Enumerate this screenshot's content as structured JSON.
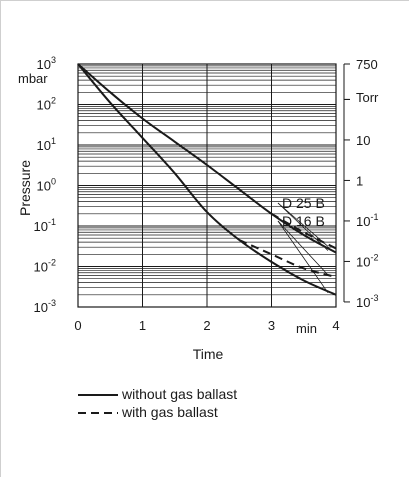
{
  "chart_data": {
    "type": "line",
    "xlabel": "Time",
    "x_unit": "min",
    "ylabel": "Pressure",
    "y_unit_left": "mbar",
    "y_unit_right": "Torr",
    "xlim": [
      0,
      4
    ],
    "ylim_mbar": [
      0.001,
      1000
    ],
    "yscale": "log",
    "grid": true,
    "x_ticks": [
      {
        "value": 0,
        "label": "0"
      },
      {
        "value": 1,
        "label": "1"
      },
      {
        "value": 2,
        "label": "2"
      },
      {
        "value": 3,
        "label": "3"
      },
      {
        "value": 4,
        "label": "4"
      }
    ],
    "y_ticks_left": [
      {
        "value": 1000,
        "base": "10",
        "exp": "3"
      },
      {
        "value": 100,
        "base": "10",
        "exp": "2"
      },
      {
        "value": 10,
        "base": "10",
        "exp": "1"
      },
      {
        "value": 1,
        "base": "10",
        "exp": "0"
      },
      {
        "value": 0.1,
        "base": "10",
        "exp": "-1"
      },
      {
        "value": 0.01,
        "base": "10",
        "exp": "-2"
      },
      {
        "value": 0.001,
        "base": "10",
        "exp": "-3"
      }
    ],
    "y_ticks_right": [
      {
        "torr": 750,
        "base": "750",
        "exp": ""
      },
      {
        "torr": 10,
        "base": "10",
        "exp": ""
      },
      {
        "torr": 1,
        "base": "1",
        "exp": ""
      },
      {
        "torr": 0.1,
        "base": "10",
        "exp": "-1"
      },
      {
        "torr": 0.01,
        "base": "10",
        "exp": "-2"
      },
      {
        "torr": 0.001,
        "base": "10",
        "exp": "-3"
      }
    ],
    "series": [
      {
        "name": "D 25 B",
        "style": "solid",
        "x": [
          0,
          0.5,
          1,
          1.5,
          2,
          2.5,
          3,
          3.5,
          4
        ],
        "y": [
          1000,
          200,
          45,
          12,
          3.2,
          0.8,
          0.2,
          0.06,
          0.022
        ]
      },
      {
        "name": "D 25 B",
        "style": "dashed",
        "x": [
          3,
          3.5,
          4
        ],
        "y": [
          0.2,
          0.07,
          0.028
        ]
      },
      {
        "name": "D 16 B",
        "style": "solid",
        "x": [
          0,
          0.5,
          1,
          1.5,
          2,
          2.5,
          3,
          3.5,
          4
        ],
        "y": [
          1000,
          110,
          15,
          2,
          0.22,
          0.045,
          0.013,
          0.0045,
          0.002
        ]
      },
      {
        "name": "D 16 B",
        "style": "dashed",
        "x": [
          2.5,
          3,
          3.5,
          4
        ],
        "y": [
          0.045,
          0.02,
          0.009,
          0.0055
        ]
      }
    ],
    "curve_labels": [
      {
        "text": "D 25 B",
        "series": "D 25 B"
      },
      {
        "text": "D 16 B",
        "series": "D 16 B"
      }
    ],
    "legend": {
      "placement": "bottom-left",
      "items": [
        {
          "label": "without gas ballast",
          "style": "solid"
        },
        {
          "label": "with gas ballast",
          "style": "dashed"
        }
      ]
    },
    "colors": {
      "line": "#1a1a1a",
      "grid": "#1a1a1a",
      "frame": "#cfcfcf"
    }
  }
}
